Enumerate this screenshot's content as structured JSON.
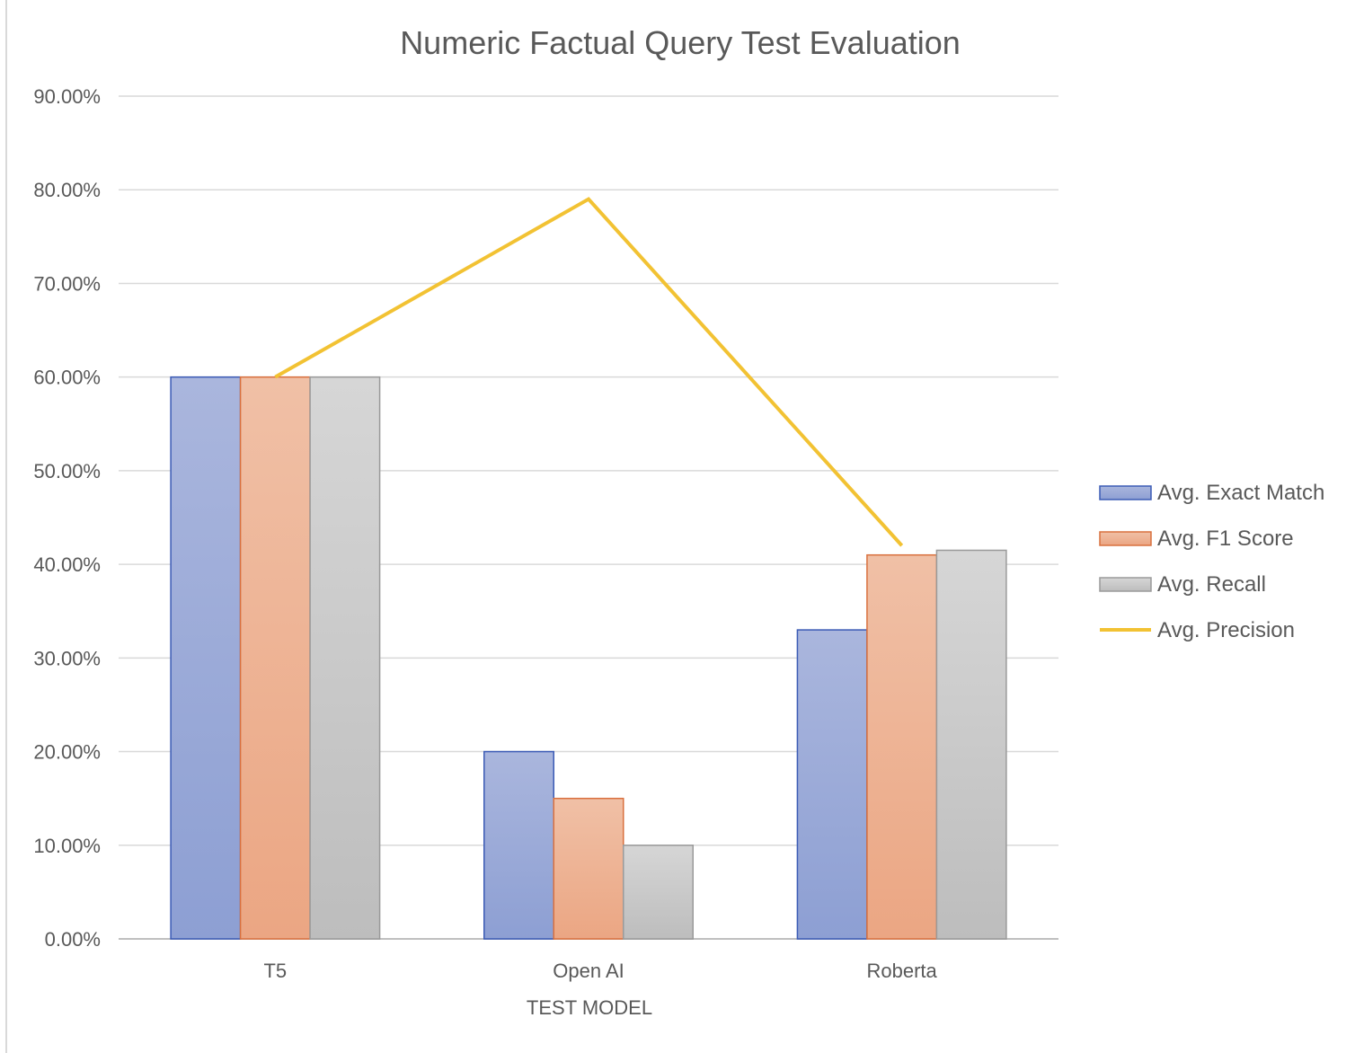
{
  "chart_data": {
    "type": "bar",
    "title": "Numeric Factual Query Test Evaluation",
    "xlabel": "TEST MODEL",
    "ylabel": "",
    "categories": [
      "T5",
      "Open AI",
      "Roberta"
    ],
    "ylim": [
      0,
      0.9
    ],
    "y_tick_step": 0.1,
    "y_tick_format": "percent_2dp",
    "y_ticks": [
      "0.00%",
      "10.00%",
      "20.00%",
      "30.00%",
      "40.00%",
      "50.00%",
      "60.00%",
      "70.00%",
      "80.00%",
      "90.00%"
    ],
    "grid": true,
    "legend_position": "right",
    "series": [
      {
        "name": "Avg. Exact Match",
        "kind": "bar",
        "values": [
          0.6,
          0.2,
          0.33
        ],
        "color_top": "#aab6dd",
        "color_bottom": "#8d9fd3",
        "stroke": "#3b5bb5"
      },
      {
        "name": "Avg. F1 Score",
        "kind": "bar",
        "values": [
          0.6,
          0.15,
          0.41
        ],
        "color_top": "#f0c0a6",
        "color_bottom": "#eba683",
        "stroke": "#d9703e"
      },
      {
        "name": "Avg. Recall",
        "kind": "bar",
        "values": [
          0.6,
          0.1,
          0.415
        ],
        "color_top": "#d6d6d6",
        "color_bottom": "#bdbdbd",
        "stroke": "#9a9a9a"
      },
      {
        "name": "Avg. Precision",
        "kind": "line",
        "values": [
          0.6,
          0.79,
          0.42
        ],
        "color": "#f2c233"
      }
    ]
  }
}
